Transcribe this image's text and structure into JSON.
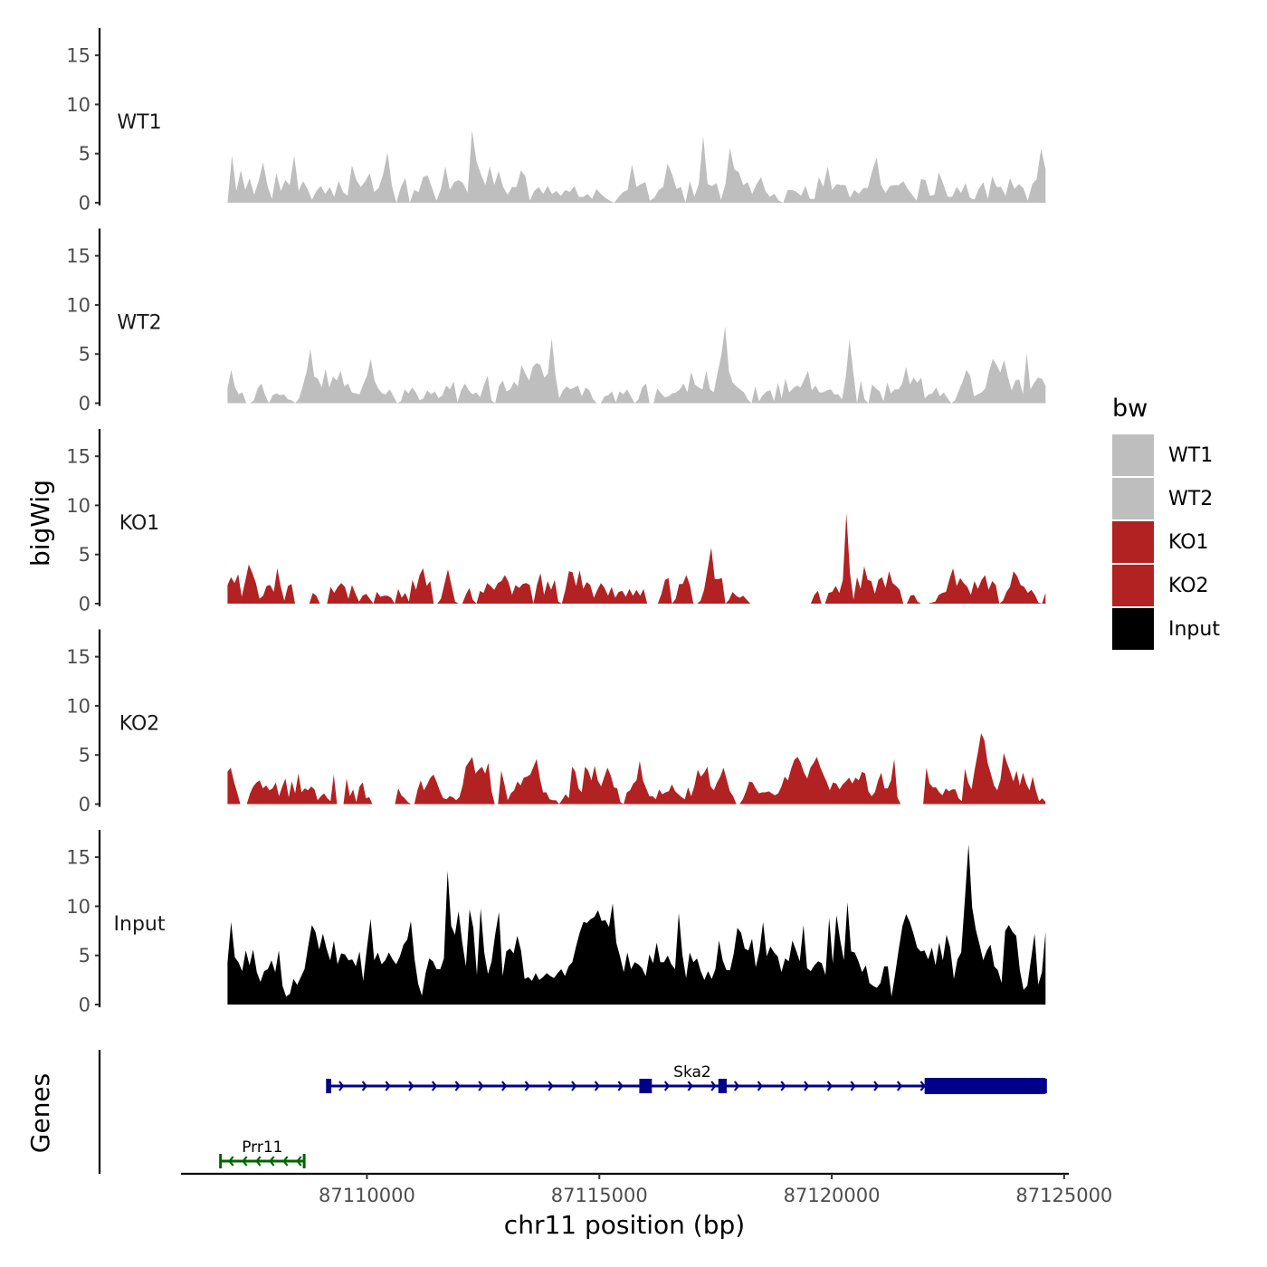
{
  "chart_data": {
    "type": "area",
    "ylabel": "bigWig",
    "xlabel": "chr11 position (bp)",
    "ylim": [
      0,
      17.5
    ],
    "yticks": [
      0,
      5,
      10,
      15
    ],
    "xlim": [
      87106000,
      87125100
    ],
    "xticks": [
      87110000,
      87115000,
      87120000,
      87125000
    ],
    "x_start": 87107000,
    "x_end": 87124600,
    "tracks": [
      {
        "name": "WT1",
        "color": "#bebebe",
        "values": [
          0,
          4.8,
          1.2,
          3.3,
          1.3,
          2.5,
          0.8,
          2.2,
          4.1,
          1.7,
          0.4,
          3,
          1.2,
          2.3,
          1.8,
          4.8,
          1.2,
          2.2,
          1.4,
          0.3,
          1.2,
          1.7,
          0.9,
          1.6,
          0.6,
          2.2,
          1.1,
          0.7,
          3.8,
          2.3,
          1.6,
          2.2,
          3,
          1.1,
          1.5,
          2.9,
          5.1,
          1.7,
          0,
          1.6,
          2.5,
          0,
          1.3,
          1.1,
          2.6,
          2.8,
          1.5,
          0.2,
          1.4,
          3.7,
          1.3,
          2.1,
          2.3,
          2,
          1,
          7.4,
          4.2,
          2.9,
          1.8,
          3.7,
          1.8,
          3.2,
          1.6,
          0.8,
          1.6,
          1.6,
          3.3,
          2.7,
          0.2,
          1.2,
          1.6,
          0.9,
          1.7,
          0.9,
          1.2,
          0.7,
          1.3,
          1.1,
          1.7,
          0.6,
          0.6,
          0.9,
          0.4,
          1.4,
          0.9,
          0.5,
          0.2,
          0,
          0.6,
          1.1,
          1.3,
          3.9,
          1.6,
          1.9,
          2.1,
          0.2,
          0.5,
          1.3,
          1.6,
          4,
          2.9,
          1.4,
          1.6,
          0,
          2.2,
          0.6,
          1.9,
          6.8,
          1.9,
          1.7,
          2,
          0.3,
          1.9,
          5.6,
          3.4,
          3.1,
          1.8,
          2.1,
          0.9,
          1.9,
          2.6,
          1.2,
          0.6,
          0.9,
          0.2,
          0,
          1.3,
          1.3,
          1.1,
          0.7,
          1.7,
          0.4,
          0.4,
          2.6,
          1.6,
          3.7,
          1.3,
          1.9,
          1.8,
          1.8,
          0.5,
          1.3,
          0.9,
          1.5,
          1.5,
          3.2,
          4.6,
          1.8,
          1,
          1.7,
          1.8,
          1.8,
          2.2,
          1.4,
          0.8,
          0.2,
          2.4,
          2.3,
          0.7,
          0.8,
          3.1,
          1.9,
          0.6,
          0.6,
          1.6,
          1,
          2,
          0.5,
          0.3,
          1.4,
          2.1,
          0.4,
          2.7,
          1.6,
          1.6,
          0.7,
          2.5,
          1.4,
          1.9,
          1.5,
          0.2,
          1.9,
          2.4,
          5.5,
          3.4
        ]
      },
      {
        "name": "WT2",
        "color": "#bebebe",
        "values": [
          1.5,
          3.4,
          1.6,
          0.9,
          1.1,
          0,
          0,
          0.3,
          1.5,
          2,
          0.8,
          0,
          0.8,
          1,
          0.8,
          0.9,
          0.4,
          0.3,
          0,
          0.5,
          1.8,
          3.2,
          5.5,
          2.7,
          2.5,
          1.6,
          3.5,
          1.6,
          2.7,
          2.3,
          3.3,
          1.7,
          2,
          1.1,
          1,
          0.9,
          1.9,
          2.8,
          4.5,
          2.3,
          1.5,
          1,
          0.9,
          1.4,
          0.7,
          0,
          0.2,
          1.4,
          1,
          1.6,
          1.1,
          0.3,
          0.5,
          1.3,
          0.9,
          1.2,
          0.5,
          0.8,
          1.8,
          1.4,
          2.2,
          0.1,
          1.3,
          2,
          1.3,
          0.9,
          1.1,
          0.6,
          1.8,
          2.8,
          0.3,
          0,
          1.7,
          2.3,
          1.2,
          1.4,
          2.2,
          1.7,
          3.9,
          3,
          2.3,
          3.7,
          4.1,
          3.9,
          2.6,
          3,
          6.6,
          2.8,
          0.5,
          1.3,
          1.7,
          1.4,
          1.6,
          1.8,
          0.7,
          1.6,
          1.3,
          0.4,
          0,
          0,
          0.7,
          0.8,
          1.2,
          0.1,
          1.2,
          0.9,
          1.4,
          0.7,
          0,
          0.4,
          1.6,
          2,
          0,
          0,
          1.5,
          1,
          0.6,
          0.7,
          1,
          1.1,
          1.4,
          2,
          1.1,
          3.2,
          1.9,
          1.6,
          1.4,
          3.3,
          1.4,
          1.1,
          3.1,
          4.9,
          7.8,
          3.3,
          2.1,
          1.7,
          1.4,
          1.1,
          0.4,
          0,
          1.7,
          0.2,
          0.8,
          1.2,
          1.3,
          0.2,
          2.1,
          0.5,
          2.5,
          1.1,
          1.5,
          1.8,
          1.6,
          2.4,
          3.3,
          1.3,
          1.8,
          1.1,
          1.1,
          1.3,
          1.4,
          0.9,
          0.9,
          0.4,
          2.6,
          6.5,
          3.1,
          0,
          2.3,
          0.4,
          0,
          1.9,
          1.5,
          1.2,
          0.2,
          2.1,
          1,
          1.4,
          1.4,
          2,
          3.7,
          1.9,
          2.6,
          2.1,
          2.6,
          0.5,
          0.9,
          1,
          1.6,
          0.7,
          1.1,
          0.5,
          0,
          0.3,
          1.3,
          2.2,
          3.4,
          2.8,
          0.7,
          0.9,
          1.1,
          1.5,
          3.2,
          4.5,
          3.9,
          3.1,
          4.4,
          2.7,
          1.3,
          2.3,
          2.4,
          0.9,
          5.1,
          1.4,
          2.1,
          2.6,
          2.5,
          1.8
        ]
      },
      {
        "name": "KO1",
        "color": "#b22222",
        "values": [
          1.9,
          2.7,
          2.1,
          3,
          0.7,
          2.3,
          4,
          3.1,
          2.1,
          0.5,
          0.8,
          1.8,
          1.9,
          1.2,
          3.6,
          1.7,
          0.3,
          1.8,
          2,
          0,
          0,
          0,
          0,
          0,
          1.1,
          0.8,
          0,
          0,
          0,
          1.7,
          1.1,
          1.7,
          2.1,
          1.7,
          0.5,
          1.9,
          1,
          0.2,
          0.8,
          1,
          0.5,
          0,
          1.2,
          0.7,
          0.8,
          0.8,
          0.6,
          0,
          1.5,
          0.6,
          1.1,
          0.2,
          2.4,
          1.4,
          2.9,
          3.6,
          1.8,
          2.3,
          0,
          0,
          0.5,
          2,
          3.5,
          1.8,
          0.2,
          0,
          0,
          0.9,
          1.6,
          0.4,
          0,
          1.3,
          1.1,
          2.1,
          1.8,
          1.4,
          2.1,
          2.3,
          2.9,
          2.2,
          0.9,
          1.9,
          1.6,
          2,
          2.1,
          1.9,
          0,
          1.9,
          3.1,
          0.9,
          2.3,
          1.4,
          2.4,
          0.2,
          0,
          1.4,
          3.3,
          3.2,
          1.8,
          3.4,
          1.5,
          2.2,
          1.9,
          0.6,
          1.4,
          2.1,
          1.6,
          0.8,
          1.7,
          0.6,
          1.2,
          1.3,
          0.7,
          1.5,
          0.8,
          1.4,
          0.8,
          1.5,
          0,
          0,
          0,
          0,
          1,
          2.4,
          2.6,
          0,
          0.5,
          2,
          2,
          2.9,
          1.9,
          0,
          0,
          0.3,
          1.4,
          3.5,
          5.7,
          2.5,
          2.5,
          2.6,
          0,
          0.4,
          1.2,
          0.8,
          0.6,
          0.8,
          0.4,
          0,
          0,
          0,
          0,
          0,
          0,
          0,
          0,
          0,
          0,
          0,
          0,
          0,
          0,
          0,
          0,
          0,
          0,
          0.9,
          1.3,
          0,
          0,
          1.1,
          1.2,
          1.8,
          1.1,
          2.4,
          9.2,
          3.1,
          0.4,
          2.7,
          1.5,
          3.8,
          2.4,
          2.3,
          1,
          2.4,
          2.7,
          1.6,
          3.3,
          2.1,
          1.8,
          1.4,
          0,
          0,
          0.8,
          0.9,
          0.2,
          0,
          0,
          0,
          0.1,
          0.2,
          0.9,
          1.1,
          1.2,
          2.5,
          3.6,
          1.8,
          2.6,
          2.1,
          1.7,
          0.9,
          2.3,
          1.5,
          2.4,
          2.9,
          1.4,
          2.3,
          1.9,
          0,
          0.3,
          1.2,
          1.7,
          3.3,
          2.8,
          1.9,
          1.7,
          1.1,
          1.4,
          0.9,
          0.1,
          0,
          1.1
        ]
      },
      {
        "name": "KO2",
        "color": "#b22222",
        "values": [
          3.3,
          3.7,
          2.3,
          1.2,
          0,
          0,
          0,
          1.1,
          1.8,
          2.2,
          2.4,
          1.6,
          1.9,
          1.4,
          1.6,
          2.2,
          0.8,
          1.8,
          2.6,
          0.7,
          2.3,
          1.1,
          3.1,
          1.2,
          1.6,
          1.4,
          1.8,
          1.5,
          0.4,
          0.8,
          1.1,
          0.6,
          0.3,
          3,
          0,
          0,
          0,
          2.6,
          0.8,
          1.5,
          0.2,
          1.8,
          2.2,
          0.6,
          0.7,
          0,
          0,
          0,
          0,
          0,
          0,
          0,
          0,
          1.6,
          0.9,
          0.6,
          0.2,
          0,
          0,
          1.4,
          2.4,
          1.4,
          2,
          2.7,
          3,
          2.2,
          1.3,
          0.6,
          0.5,
          0.8,
          0.7,
          0.4,
          0.7,
          1.9,
          3.8,
          4.3,
          4.8,
          3.1,
          3.5,
          3.8,
          3.1,
          4.2,
          1.3,
          0,
          0,
          3.4,
          2,
          0.4,
          1.1,
          1.4,
          2.3,
          1.9,
          2.7,
          2.8,
          3,
          3.8,
          4.6,
          2.6,
          1.2,
          1.2,
          0.5,
          0.4,
          0.4,
          0,
          0.5,
          1,
          0.6,
          3.8,
          3.3,
          1.6,
          1.2,
          3.8,
          3.4,
          2.4,
          3.9,
          2.4,
          1.8,
          2.8,
          3.7,
          2.9,
          1.7,
          1.6,
          0.2,
          0,
          1.2,
          1.4,
          2.1,
          2.4,
          4.4,
          2.4,
          1.6,
          0.8,
          0.8,
          0.5,
          1.5,
          1,
          1.2,
          1.3,
          2,
          1.3,
          1,
          0.7,
          0.5,
          1.7,
          0.8,
          1.9,
          3.5,
          2.8,
          3.2,
          3.8,
          1.8,
          1.4,
          2.2,
          2.8,
          3.7,
          2.5,
          1.3,
          0.8,
          0,
          0,
          0.5,
          1.3,
          2.3,
          2.2,
          1.6,
          1.1,
          1.2,
          1.2,
          1.3,
          1.1,
          0.9,
          1.1,
          1.8,
          2.8,
          2.4,
          3.6,
          4.5,
          4.8,
          4.2,
          3.2,
          2.6,
          3.7,
          4.2,
          4.8,
          3.8,
          3,
          2.3,
          1.4,
          2.2,
          2.1,
          1.5,
          2,
          2.3,
          2.7,
          2.1,
          2.7,
          2.4,
          3.3,
          3.1,
          1.3,
          0.8,
          1.2,
          2.4,
          3.2,
          1.6,
          1.6,
          2.4,
          4.6,
          0.7,
          0,
          0,
          0,
          0,
          0,
          0,
          0,
          0,
          3.7,
          2.1,
          1.7,
          1.7,
          1.2,
          0.9,
          1.6,
          1.3,
          1.5,
          1.5,
          0.6,
          0.3,
          3.6,
          2.2,
          1.5,
          3.5,
          5.3,
          7.2,
          6.5,
          4.2,
          3.1,
          1.9,
          1.4,
          2.5,
          5.2,
          4.2,
          3.3,
          2.3,
          3.4,
          1.9,
          3.2,
          2.1,
          1.4,
          2.8,
          1.4,
          0.3,
          0.6,
          0.2
        ]
      },
      {
        "name": "Input",
        "color": "#000000",
        "values": [
          4.3,
          8.4,
          4.8,
          4.3,
          3.4,
          5.5,
          4,
          5.6,
          3.3,
          2.3,
          3.4,
          3.6,
          4.5,
          3.3,
          5.5,
          1.9,
          0.8,
          1.1,
          2.6,
          2,
          2.8,
          3.6,
          5.9,
          8.1,
          7.4,
          5.6,
          7.2,
          5.7,
          4.5,
          6.5,
          4.1,
          5.2,
          5.1,
          4.5,
          4.6,
          3.9,
          5.4,
          2.4,
          5.7,
          8.7,
          4.5,
          5.3,
          4.1,
          4.5,
          5.3,
          4.6,
          4.1,
          4.9,
          6.1,
          6.6,
          8.5,
          4.6,
          2.1,
          0.9,
          3.2,
          4.7,
          4.4,
          3.6,
          3.6,
          4.7,
          13.6,
          8,
          7.1,
          9.5,
          6.3,
          3.9,
          9.7,
          7.8,
          3,
          9.8,
          5.3,
          3.1,
          4.4,
          7.2,
          9.4,
          2.9,
          5.4,
          5.7,
          5.2,
          7,
          5.5,
          2.6,
          2.8,
          2.4,
          3.2,
          2.5,
          2.8,
          3.2,
          2.9,
          2.7,
          3.2,
          3.6,
          2.9,
          3.9,
          4.3,
          5.9,
          7.3,
          8.4,
          8.3,
          8.7,
          8.9,
          9.6,
          8.5,
          8.6,
          7.9,
          10.3,
          6.3,
          4.9,
          3.3,
          5.3,
          3.6,
          4.3,
          4.1,
          3.7,
          2.9,
          5.1,
          4.2,
          6.3,
          4.3,
          4.3,
          5,
          4.1,
          3.6,
          9.3,
          5.1,
          2.7,
          5.3,
          4.3,
          4.7,
          3.4,
          2.5,
          3.4,
          2.6,
          3.6,
          6.5,
          4.5,
          3.5,
          3.5,
          5.2,
          7.8,
          7.3,
          5.7,
          5.5,
          6.7,
          3.8,
          5.4,
          8.4,
          4.9,
          5.9,
          5.3,
          4.9,
          3.3,
          4.7,
          4.4,
          6.5,
          5.5,
          4.4,
          8.1,
          3.7,
          3.4,
          4,
          4.4,
          4.2,
          3,
          8.8,
          4.2,
          9.1,
          6.6,
          4.5,
          10.4,
          5.4,
          5.3,
          4.4,
          3.3,
          4,
          2.2,
          1.9,
          1.7,
          2.2,
          3.9,
          3.9,
          0.8,
          3.1,
          5.7,
          8,
          9.2,
          8.4,
          7.2,
          5.8,
          5.4,
          5.5,
          4.6,
          5.8,
          4,
          6.3,
          4.5,
          7.1,
          5.8,
          2.6,
          4.6,
          5.3,
          10.6,
          16.3,
          9.9,
          7.6,
          6.1,
          4.5,
          5.5,
          6.1,
          3.9,
          3.5,
          2.2,
          7.5,
          8.1,
          7.4,
          7,
          3.5,
          1.5,
          1.9,
          4.5,
          7.2,
          2,
          3.3,
          7.4
        ]
      }
    ],
    "legend": {
      "title": "bw",
      "position": "right",
      "entries": [
        {
          "label": "WT1",
          "color": "#bebebe"
        },
        {
          "label": "WT2",
          "color": "#bebebe"
        },
        {
          "label": "KO1",
          "color": "#b22222"
        },
        {
          "label": "KO2",
          "color": "#b22222"
        },
        {
          "label": "Input",
          "color": "#000000"
        }
      ]
    },
    "genes_panel": {
      "ylabel": "Genes",
      "genes": [
        {
          "name": "Ska2",
          "color": "#00008b",
          "strand": "+",
          "start": 87109150,
          "end": 87124600,
          "exons": [
            [
              87109150,
              87109230
            ],
            [
              87115860,
              87116130
            ],
            [
              87117560,
              87117740
            ],
            [
              87122000,
              87124600
            ]
          ],
          "thick_exons": [
            [
              87122000,
              87124230
            ],
            [
              87124230,
              87124600
            ]
          ]
        },
        {
          "name": "Prr11",
          "color": "#006400",
          "strand": "-",
          "start": 87106850,
          "end": 87108650,
          "exons": [],
          "thick_exons": []
        }
      ]
    }
  }
}
